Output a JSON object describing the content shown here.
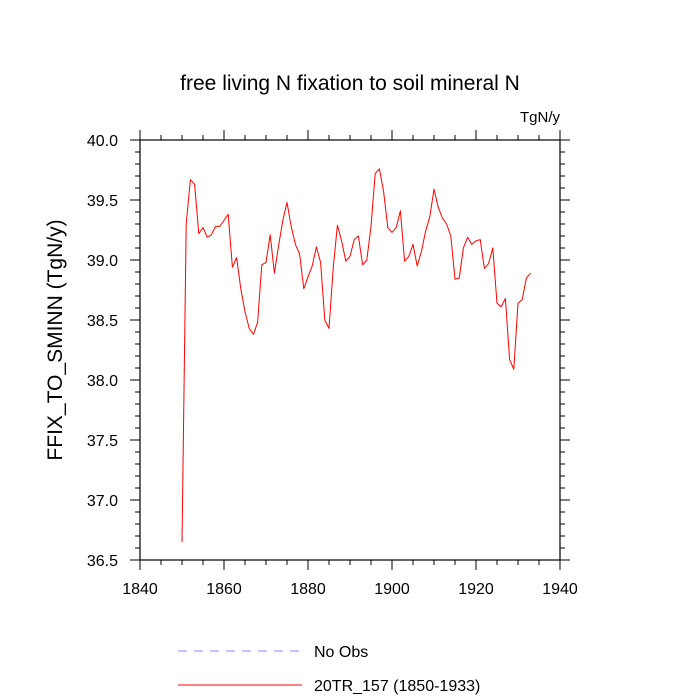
{
  "chart_data": {
    "type": "line",
    "title": "free living N fixation to soil mineral N",
    "units_label": "TgN/y",
    "ylabel": "FFIX_TO_SMINN  (TgN/y)",
    "xlabel": "",
    "xlim": [
      1840,
      1940
    ],
    "ylim": [
      36.5,
      40.0
    ],
    "xticks": [
      "1840",
      "1860",
      "1880",
      "1900",
      "1920",
      "1940"
    ],
    "yticks": [
      "36.5",
      "37.0",
      "37.5",
      "38.0",
      "38.5",
      "39.0",
      "39.5",
      "40.0"
    ],
    "series": [
      {
        "name": "20TR_157 (1850-1933)",
        "color": "#ff0000",
        "style": "solid",
        "x": [
          1850,
          1851,
          1852,
          1853,
          1854,
          1855,
          1856,
          1857,
          1858,
          1859,
          1860,
          1861,
          1862,
          1863,
          1864,
          1865,
          1866,
          1867,
          1868,
          1869,
          1870,
          1871,
          1872,
          1873,
          1874,
          1875,
          1876,
          1877,
          1878,
          1879,
          1880,
          1881,
          1882,
          1883,
          1884,
          1885,
          1886,
          1887,
          1888,
          1889,
          1890,
          1891,
          1892,
          1893,
          1894,
          1895,
          1896,
          1897,
          1898,
          1899,
          1900,
          1901,
          1902,
          1903,
          1904,
          1905,
          1906,
          1907,
          1908,
          1909,
          1910,
          1911,
          1912,
          1913,
          1914,
          1915,
          1916,
          1917,
          1918,
          1919,
          1920,
          1921,
          1922,
          1923,
          1924,
          1925,
          1926,
          1927,
          1928,
          1929,
          1930,
          1931,
          1932,
          1933
        ],
        "values": [
          36.65,
          39.3,
          39.67,
          39.63,
          39.22,
          39.27,
          39.19,
          39.21,
          39.28,
          39.28,
          39.33,
          39.38,
          38.94,
          39.02,
          38.76,
          38.57,
          38.43,
          38.38,
          38.48,
          38.96,
          38.98,
          39.21,
          38.89,
          39.12,
          39.33,
          39.48,
          39.28,
          39.13,
          39.05,
          38.76,
          38.86,
          38.95,
          39.11,
          38.98,
          38.5,
          38.43,
          38.93,
          39.29,
          39.16,
          38.99,
          39.03,
          39.17,
          39.2,
          38.96,
          39.0,
          39.28,
          39.72,
          39.76,
          39.57,
          39.27,
          39.23,
          39.27,
          39.41,
          38.99,
          39.03,
          39.13,
          38.95,
          39.07,
          39.24,
          39.36,
          39.59,
          39.44,
          39.35,
          39.3,
          39.2,
          38.84,
          38.85,
          39.1,
          39.19,
          39.13,
          39.16,
          39.17,
          38.93,
          38.97,
          39.1,
          38.64,
          38.61,
          38.68,
          38.17,
          38.09,
          38.64,
          38.67,
          38.85,
          38.89
        ]
      }
    ],
    "legend": {
      "position": "bottom-center",
      "entries": [
        {
          "label": "No Obs",
          "color": "#8888ff",
          "style": "dashed"
        },
        {
          "label": "20TR_157 (1850-1933)",
          "color": "#ff0000",
          "style": "solid"
        }
      ]
    }
  }
}
